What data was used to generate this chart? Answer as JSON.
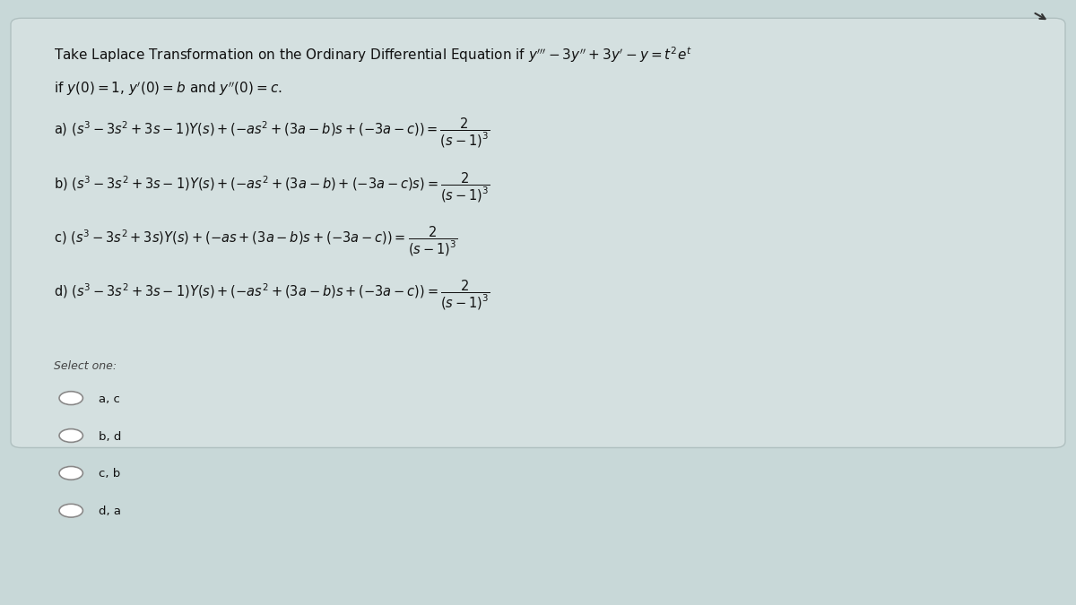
{
  "bg_color": "#c8d8d8",
  "box_color": "#d4e0e0",
  "box_edge_color": "#b0c0c0",
  "text_color": "#111111",
  "label_color": "#444444",
  "font_size_title": 11,
  "font_size_options": 10.5,
  "font_size_select": 9,
  "font_size_choices": 9.5,
  "select_label": "Select one:",
  "choices": [
    "a, c",
    "b, d",
    "c, b",
    "d, a"
  ]
}
